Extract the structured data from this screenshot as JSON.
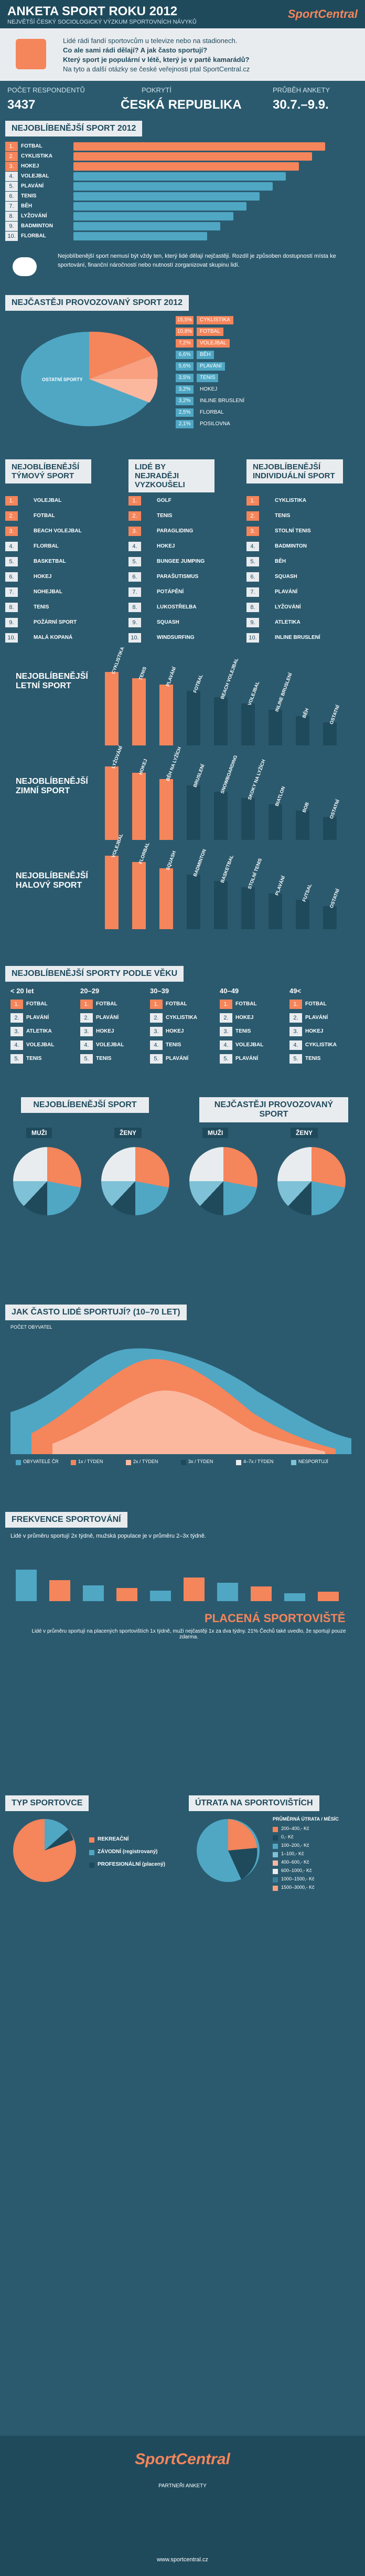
{
  "header": {
    "title": "ANKETA SPORT ROKU 2012",
    "subtitle": "NEJVĚTŠÍ ČESKÝ SOCIOLOGICKÝ VÝZKUM SPORTOVNÍCH NÁVYKŮ",
    "logo": "SportCentral"
  },
  "intro": {
    "lines": [
      "Lidé rádi fandí sportovcům u televize nebo na stadionech.",
      "Co ale sami rádi dělají? A jak často sportují?",
      "Který sport je populární v létě, který je v partě kamarádů?",
      "Na tyto a další otázky se české veřejnosti ptal SportCentral.cz"
    ]
  },
  "stats": {
    "respondents_label": "POČET RESPONDENTŮ",
    "respondents": "3437",
    "coverage_label": "POKRYTÍ",
    "coverage": "ČESKÁ REPUBLIKA",
    "period_label": "PRŮBĚH ANKETY",
    "period": "30.7.–9.9."
  },
  "sections": {
    "favorite_2012": "NEJOBLÍBENĚJŠÍ SPORT 2012",
    "most_practiced_2012": "NEJČASTĚJI PROVOZOVANÝ SPORT 2012",
    "team": "NEJOBLÍBENĚJŠÍ TÝMOVÝ SPORT",
    "wanted": "LIDÉ BY NEJRADĚJI VYZKOUŠELI",
    "individual": "NEJOBLÍBENĚJŠÍ INDIVIDUÁLNÍ SPORT",
    "summer": "NEJOBLÍBENĚJŠÍ LETNÍ SPORT",
    "winter": "NEJOBLÍBENĚJŠÍ ZIMNÍ SPORT",
    "indoor": "NEJOBLÍBENĚJŠÍ HALOVÝ SPORT",
    "by_age": "NEJOBLÍBENĚJŠÍ SPORTY PODLE VĚKU",
    "favorite_gender": "NEJOBLÍBENĚJŠÍ SPORT",
    "practiced_gender": "NEJČASTĚJI PROVOZOVANÝ SPORT",
    "how_often": "JAK ČASTO LIDÉ SPORTUJÍ? (10–70 LET)",
    "frequency": "FREKVENCE SPORTOVÁNÍ",
    "paid_venues": "PLACENÁ SPORTOVIŠTĚ",
    "sport_type": "TYP SPORTOVCE",
    "spending": "ÚTRATA NA SPORTOVIŠTÍCH"
  },
  "favorite_2012": [
    "FOTBAL",
    "CYKLISTIKA",
    "HOKEJ",
    "VOLEJBAL",
    "PLAVÁNÍ",
    "TENIS",
    "BĚH",
    "LYŽOVÁNÍ",
    "BADMINTON",
    "FLORBAL"
  ],
  "note": "Nejoblíbenější sport nemusí být vždy ten, který lidé dělají nejčastěji. Rozdíl je způsoben dostupností místa ke sportování, finanční náročností nebo nutností zorganizovat skupinu lidí.",
  "practiced_legend": [
    {
      "pct": "15,5%",
      "label": "CYKLISTIKA"
    },
    {
      "pct": "10,8%",
      "label": "FOTBAL"
    },
    {
      "pct": "7,2%",
      "label": "VOLEJBAL"
    },
    {
      "pct": "6,6%",
      "label": "BĚH"
    },
    {
      "pct": "5,6%",
      "label": "PLAVÁNÍ"
    },
    {
      "pct": "3,5%",
      "label": "TENIS"
    },
    {
      "pct": "3,2%",
      "label": "HOKEJ"
    },
    {
      "pct": "3,2%",
      "label": "INLINE BRUSLENÍ"
    },
    {
      "pct": "2,5%",
      "label": "FLORBAL"
    },
    {
      "pct": "2,1%",
      "label": "POSILOVNA"
    }
  ],
  "practiced_other": "OSTATNÍ SPORTY",
  "team_list": [
    "VOLEJBAL",
    "FOTBAL",
    "BEACH VOLEJBAL",
    "FLORBAL",
    "BASKETBAL",
    "HOKEJ",
    "NOHEJBAL",
    "TENIS",
    "POŽÁRNÍ SPORT",
    "MALÁ KOPANÁ"
  ],
  "wanted_list": [
    "GOLF",
    "TENIS",
    "PARAGLIDING",
    "HOKEJ",
    "BUNGEE JUMPING",
    "PARAŠUTISMUS",
    "POTÁPĚNÍ",
    "LUKOSTŘELBA",
    "SQUASH",
    "WINDSURFING"
  ],
  "individual_list": [
    "CYKLISTIKA",
    "TENIS",
    "STOLNÍ TENIS",
    "BADMINTON",
    "BĚH",
    "SQUASH",
    "PLAVÁNÍ",
    "LYŽOVÁNÍ",
    "ATLETIKA",
    "INLINE BRUSLENÍ"
  ],
  "summer_labels": [
    "CYKLISTIKA",
    "TENIS",
    "PLAVÁNÍ",
    "FOTBAL",
    "BEACH VOLEJBAL",
    "VOLEJBAL",
    "INLINE BRUSLENÍ",
    "BĚH",
    "OSTATNÍ"
  ],
  "winter_labels": [
    "LYŽOVÁNÍ",
    "HOKEJ",
    "BĚH NA LYŽÍCH",
    "BRUSLENÍ",
    "SNOWBOARDING",
    "SKOKY NA LYŽÍCH",
    "BIATLON",
    "BOB",
    "OSTATNÍ"
  ],
  "indoor_labels": [
    "VOLEJBAL",
    "FLORBAL",
    "SQUASH",
    "BADMINTON",
    "BASKETBAL",
    "STOLNÍ TENIS",
    "PLAVÁNÍ",
    "FUTSAL",
    "OSTATNÍ"
  ],
  "ages": [
    "< 20 let",
    "20–29",
    "30–39",
    "40–49",
    "49<"
  ],
  "age_table": [
    [
      "FOTBAL",
      "FOTBAL",
      "FOTBAL",
      "FOTBAL",
      "FOTBAL"
    ],
    [
      "PLAVÁNÍ",
      "PLAVÁNÍ",
      "CYKLISTIKA",
      "HOKEJ",
      "PLAVÁNÍ"
    ],
    [
      "ATLETIKA",
      "HOKEJ",
      "HOKEJ",
      "TENIS",
      "HOKEJ"
    ],
    [
      "VOLEJBAL",
      "VOLEJBAL",
      "TENIS",
      "VOLEJBAL",
      "CYKLISTIKA"
    ],
    [
      "TENIS",
      "TENIS",
      "PLAVÁNÍ",
      "PLAVÁNÍ",
      "TENIS"
    ]
  ],
  "gender": {
    "men": "MUŽI",
    "women": "ŽENY"
  },
  "how_often_axis": "POČET OBYVATEL",
  "freq_legend": [
    "OBYVATELÉ ČR",
    "1x / TÝDEN",
    "2x / TÝDEN",
    "3x / TÝDEN",
    "4–7x / TÝDEN",
    "NESPORTUJÍ"
  ],
  "freq_note": "Lidé v průměru sportují 2x týdně, mužská populace je v průměru 2–3x týdně.",
  "paid_note": "Lidé v průměru sportují na placených sportovištích 1x týdně, muži nejčastěji 1x za dva týdny. 21% Čechů také uvedlo, že sportují pouze zdarma.",
  "sport_type_items": [
    "REKREAČNÍ",
    "ZÁVODNÍ (registrovaný)",
    "PROFESIONÁLNÍ (placený)"
  ],
  "spending_header": "PRŮMĚRNÁ ÚTRATA / MĚSÍC",
  "spending_items": [
    "200–400,- Kč",
    "0,- Kč",
    "100–200,- Kč",
    "1–100,- Kč",
    "400–600,- Kč",
    "600–1000,- Kč",
    "1000–1500,- Kč",
    "1500–3000,- Kč"
  ],
  "footer": {
    "logo": "SportCentral",
    "partners": "PARTNEŘI ANKETY",
    "url": "www.sportcentral.cz"
  },
  "colors": {
    "bg": "#2b5a6e",
    "dark": "#1f4a5c",
    "light": "#e9ecef",
    "accent": "#f5855b",
    "teal": "#4fa7c4"
  }
}
